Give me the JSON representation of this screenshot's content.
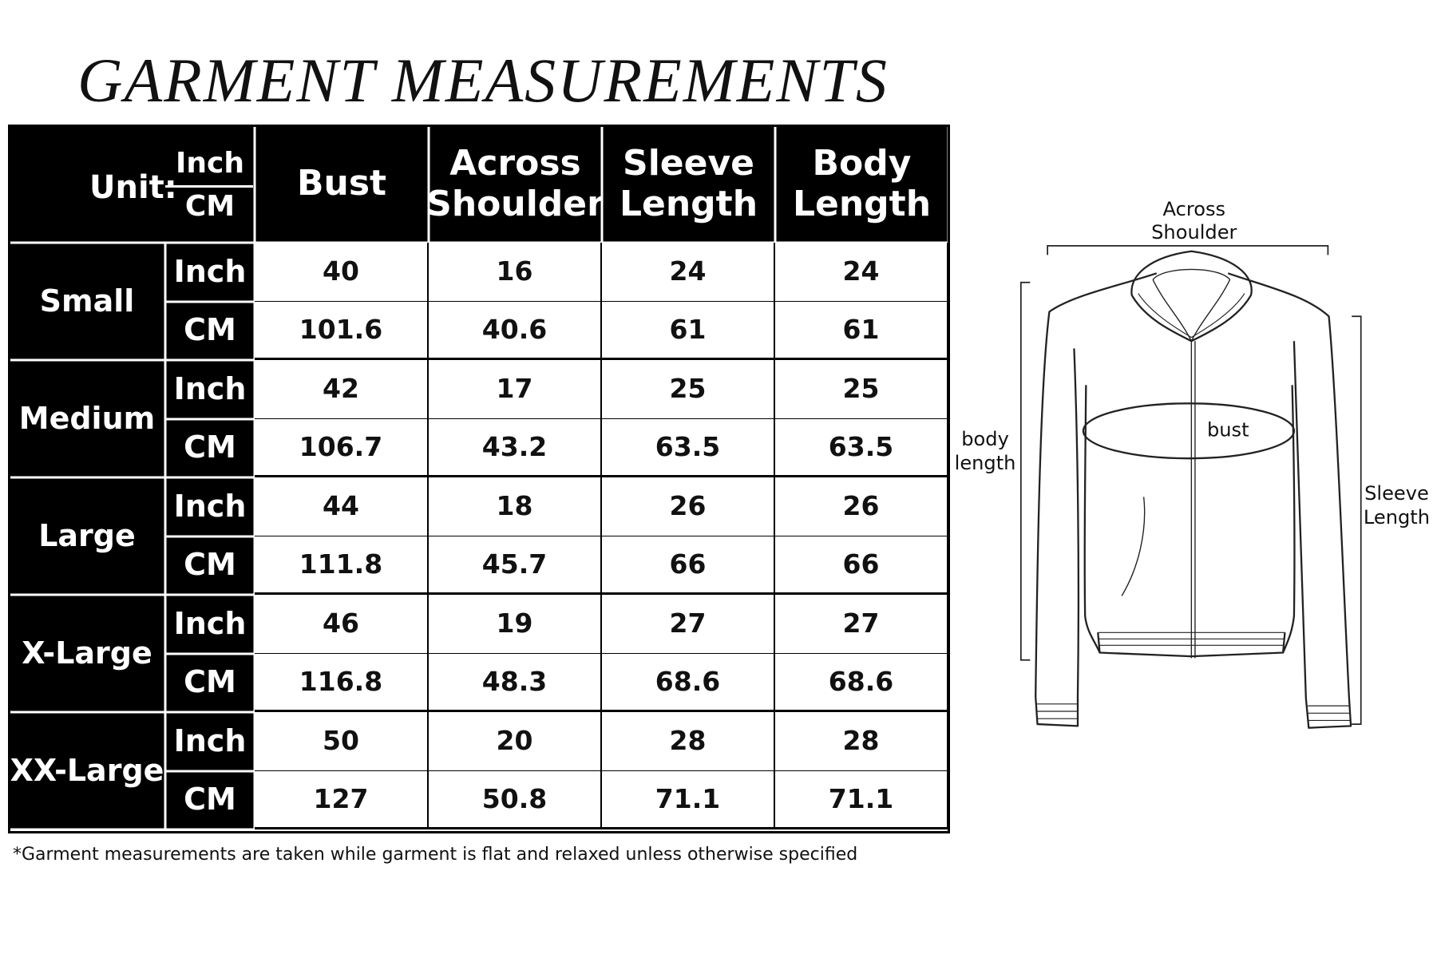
{
  "title": "GARMENT MEASUREMENTS",
  "table": {
    "unit_label": "Unit:",
    "unit_inch": "Inch",
    "unit_cm": "CM",
    "columns": [
      "Bust",
      "Across Shoulder",
      "Sleeve Length",
      "Body Length"
    ],
    "rows": [
      {
        "size": "Small",
        "inch": [
          40,
          16,
          24,
          24
        ],
        "cm": [
          101.6,
          40.6,
          61,
          61
        ]
      },
      {
        "size": "Medium",
        "inch": [
          42,
          17,
          25,
          25
        ],
        "cm": [
          106.7,
          43.2,
          63.5,
          63.5
        ]
      },
      {
        "size": "Large",
        "inch": [
          44,
          18,
          26,
          26
        ],
        "cm": [
          111.8,
          45.7,
          66,
          66
        ]
      },
      {
        "size": "X-Large",
        "inch": [
          46,
          19,
          27,
          27
        ],
        "cm": [
          116.8,
          48.3,
          68.6,
          68.6
        ]
      },
      {
        "size": "XX-Large",
        "inch": [
          50,
          20,
          28,
          28
        ],
        "cm": [
          127,
          50.8,
          71.1,
          71.1
        ]
      }
    ]
  },
  "note": "*Garment measurements are taken while garment is flat and relaxed unless otherwise specified",
  "diagram": {
    "across_shoulder": [
      "Across",
      "Shoulder"
    ],
    "body_length": [
      "body",
      "length"
    ],
    "bust": "bust",
    "sleeve_length": [
      "Sleeve",
      "Length"
    ]
  }
}
